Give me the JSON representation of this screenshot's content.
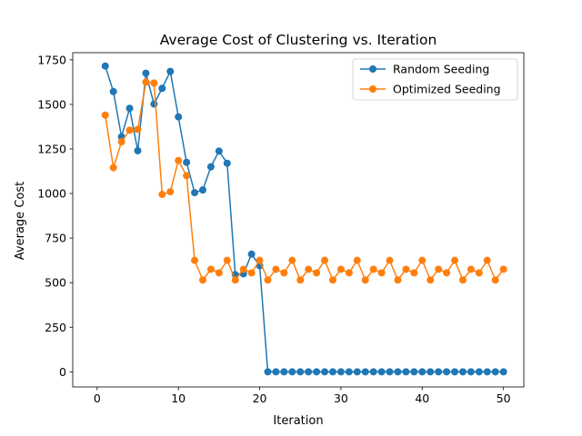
{
  "chart_data": {
    "type": "line",
    "title": "Average Cost of Clustering vs. Iteration",
    "xlabel": "Iteration",
    "ylabel": "Average Cost",
    "xlim": [
      -3,
      52.5
    ],
    "ylim": [
      -85,
      1790
    ],
    "xticks": [
      0,
      10,
      20,
      30,
      40,
      50
    ],
    "yticks": [
      0,
      250,
      500,
      750,
      1000,
      1250,
      1500,
      1750
    ],
    "legend_position": "top-right",
    "grid": false,
    "x": [
      1,
      2,
      3,
      4,
      5,
      6,
      7,
      8,
      9,
      10,
      11,
      12,
      13,
      14,
      15,
      16,
      17,
      18,
      19,
      20,
      21,
      22,
      23,
      24,
      25,
      26,
      27,
      28,
      29,
      30,
      31,
      32,
      33,
      34,
      35,
      36,
      37,
      38,
      39,
      40,
      41,
      42,
      43,
      44,
      45,
      46,
      47,
      48,
      49,
      50
    ],
    "series": [
      {
        "name": "Random Seeding",
        "color": "#1f77b4",
        "values": [
          1715,
          1572,
          1318,
          1478,
          1240,
          1675,
          1502,
          1590,
          1685,
          1430,
          1175,
          1005,
          1020,
          1150,
          1238,
          1170,
          545,
          550,
          660,
          595,
          0,
          0,
          0,
          0,
          0,
          0,
          0,
          0,
          0,
          0,
          0,
          0,
          0,
          0,
          0,
          0,
          0,
          0,
          0,
          0,
          0,
          0,
          0,
          0,
          0,
          0,
          0,
          0,
          0,
          0
        ]
      },
      {
        "name": "Optimized Seeding",
        "color": "#ff7f0e",
        "values": [
          1440,
          1145,
          1290,
          1355,
          1360,
          1625,
          1620,
          995,
          1010,
          1185,
          1100,
          625,
          515,
          575,
          555,
          625,
          515,
          575,
          555,
          625,
          515,
          575,
          555,
          625,
          515,
          575,
          555,
          625,
          515,
          575,
          555,
          625,
          515,
          575,
          555,
          625,
          515,
          575,
          555,
          625,
          515,
          575,
          555,
          625,
          515,
          575,
          555,
          625,
          515,
          575
        ]
      }
    ]
  }
}
